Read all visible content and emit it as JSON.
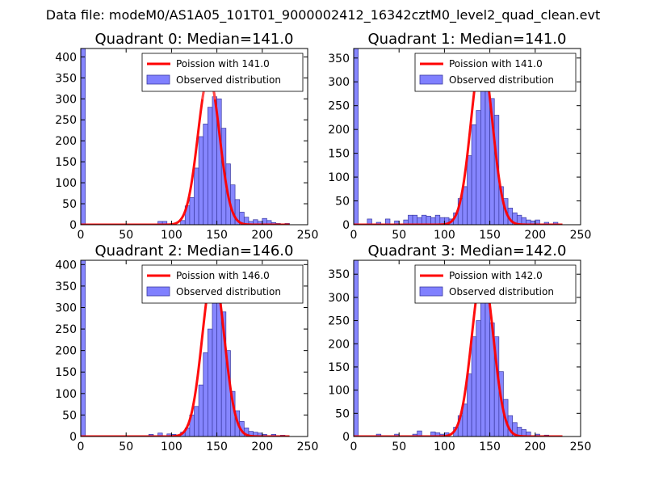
{
  "suptitle": "Data file: modeM0/AS1A05_101T01_9000002412_16342cztM0_level2_quad_clean.evt",
  "colors": {
    "poisson_line": "#ff0000",
    "bar_fill": "#8080ff",
    "bar_edge": "#3a3aa0",
    "axes": "#000000",
    "background": "#ffffff"
  },
  "chart_data": [
    {
      "type": "bar",
      "title": "Quadrant 0: Median=141.0",
      "xlim": [
        0,
        250
      ],
      "ylim": [
        0,
        420
      ],
      "xticks": [
        0,
        50,
        100,
        150,
        200,
        250
      ],
      "yticks": [
        0,
        50,
        100,
        150,
        200,
        250,
        300,
        350,
        400
      ],
      "legend_position": "top-right",
      "legend": [
        "Poission with 141.0",
        "Observed distribution"
      ],
      "line_label": "Poission with 141.0",
      "bar_label": "Observed distribution",
      "median": 141.0,
      "bin_width": 5,
      "bins": [
        [
          0,
          420
        ],
        [
          85,
          8
        ],
        [
          90,
          8
        ],
        [
          110,
          10
        ],
        [
          115,
          45
        ],
        [
          120,
          65
        ],
        [
          125,
          135
        ],
        [
          130,
          210
        ],
        [
          135,
          240
        ],
        [
          140,
          280
        ],
        [
          145,
          305
        ],
        [
          150,
          300
        ],
        [
          155,
          230
        ],
        [
          160,
          145
        ],
        [
          165,
          95
        ],
        [
          170,
          60
        ],
        [
          175,
          30
        ],
        [
          180,
          18
        ],
        [
          185,
          8
        ],
        [
          190,
          12
        ],
        [
          195,
          8
        ],
        [
          200,
          15
        ],
        [
          205,
          10
        ],
        [
          210,
          5
        ],
        [
          215,
          3
        ],
        [
          225,
          3
        ]
      ],
      "line_peak": 355
    },
    {
      "type": "bar",
      "title": "Quadrant 1: Median=141.0",
      "xlim": [
        0,
        250
      ],
      "ylim": [
        0,
        370
      ],
      "xticks": [
        0,
        50,
        100,
        150,
        200,
        250
      ],
      "yticks": [
        0,
        50,
        100,
        150,
        200,
        250,
        300,
        350
      ],
      "legend_position": "top-right",
      "legend": [
        "Poission with 141.0",
        "Observed distribution"
      ],
      "line_label": "Poission with 141.0",
      "bar_label": "Observed distribution",
      "median": 141.0,
      "bin_width": 5,
      "bins": [
        [
          0,
          370
        ],
        [
          15,
          12
        ],
        [
          25,
          5
        ],
        [
          35,
          12
        ],
        [
          45,
          8
        ],
        [
          55,
          10
        ],
        [
          60,
          20
        ],
        [
          65,
          20
        ],
        [
          70,
          15
        ],
        [
          75,
          20
        ],
        [
          80,
          18
        ],
        [
          85,
          15
        ],
        [
          90,
          20
        ],
        [
          95,
          15
        ],
        [
          100,
          15
        ],
        [
          105,
          12
        ],
        [
          110,
          25
        ],
        [
          115,
          55
        ],
        [
          120,
          80
        ],
        [
          125,
          145
        ],
        [
          130,
          210
        ],
        [
          135,
          240
        ],
        [
          140,
          285
        ],
        [
          145,
          305
        ],
        [
          150,
          265
        ],
        [
          155,
          230
        ],
        [
          160,
          80
        ],
        [
          165,
          55
        ],
        [
          170,
          35
        ],
        [
          175,
          25
        ],
        [
          180,
          20
        ],
        [
          185,
          15
        ],
        [
          190,
          10
        ],
        [
          195,
          8
        ],
        [
          200,
          10
        ],
        [
          210,
          5
        ],
        [
          220,
          5
        ]
      ],
      "line_peak": 355
    },
    {
      "type": "bar",
      "title": "Quadrant 2: Median=146.0",
      "xlim": [
        0,
        250
      ],
      "ylim": [
        0,
        410
      ],
      "xticks": [
        0,
        50,
        100,
        150,
        200,
        250
      ],
      "yticks": [
        0,
        50,
        100,
        150,
        200,
        250,
        300,
        350,
        400
      ],
      "legend_position": "top-right",
      "legend": [
        "Poission with 146.0",
        "Observed distribution"
      ],
      "line_label": "Poission with 146.0",
      "bar_label": "Observed distribution",
      "median": 146.0,
      "bin_width": 5,
      "bins": [
        [
          0,
          410
        ],
        [
          75,
          5
        ],
        [
          85,
          8
        ],
        [
          95,
          6
        ],
        [
          100,
          5
        ],
        [
          110,
          10
        ],
        [
          115,
          20
        ],
        [
          120,
          50
        ],
        [
          125,
          70
        ],
        [
          130,
          120
        ],
        [
          135,
          195
        ],
        [
          140,
          250
        ],
        [
          145,
          310
        ],
        [
          150,
          330
        ],
        [
          155,
          290
        ],
        [
          160,
          200
        ],
        [
          165,
          105
        ],
        [
          170,
          60
        ],
        [
          175,
          35
        ],
        [
          180,
          20
        ],
        [
          185,
          12
        ],
        [
          190,
          10
        ],
        [
          195,
          8
        ],
        [
          200,
          5
        ],
        [
          210,
          5
        ],
        [
          220,
          3
        ]
      ],
      "line_peak": 385
    },
    {
      "type": "bar",
      "title": "Quadrant 3: Median=142.0",
      "xlim": [
        0,
        250
      ],
      "ylim": [
        0,
        380
      ],
      "xticks": [
        0,
        50,
        100,
        150,
        200,
        250
      ],
      "yticks": [
        0,
        50,
        100,
        150,
        200,
        250,
        300,
        350
      ],
      "legend_position": "top-right",
      "legend": [
        "Poission with 142.0",
        "Observed distribution"
      ],
      "line_label": "Poission with 142.0",
      "bar_label": "Observed distribution",
      "median": 142.0,
      "bin_width": 5,
      "bins": [
        [
          0,
          380
        ],
        [
          25,
          5
        ],
        [
          45,
          5
        ],
        [
          65,
          5
        ],
        [
          70,
          12
        ],
        [
          85,
          10
        ],
        [
          90,
          8
        ],
        [
          95,
          5
        ],
        [
          100,
          8
        ],
        [
          110,
          20
        ],
        [
          115,
          45
        ],
        [
          120,
          70
        ],
        [
          125,
          135
        ],
        [
          130,
          215
        ],
        [
          135,
          250
        ],
        [
          140,
          320
        ],
        [
          145,
          295
        ],
        [
          150,
          245
        ],
        [
          155,
          215
        ],
        [
          160,
          140
        ],
        [
          165,
          80
        ],
        [
          170,
          45
        ],
        [
          175,
          30
        ],
        [
          180,
          20
        ],
        [
          185,
          15
        ],
        [
          190,
          10
        ],
        [
          200,
          5
        ],
        [
          210,
          3
        ]
      ],
      "line_peak": 355
    }
  ]
}
